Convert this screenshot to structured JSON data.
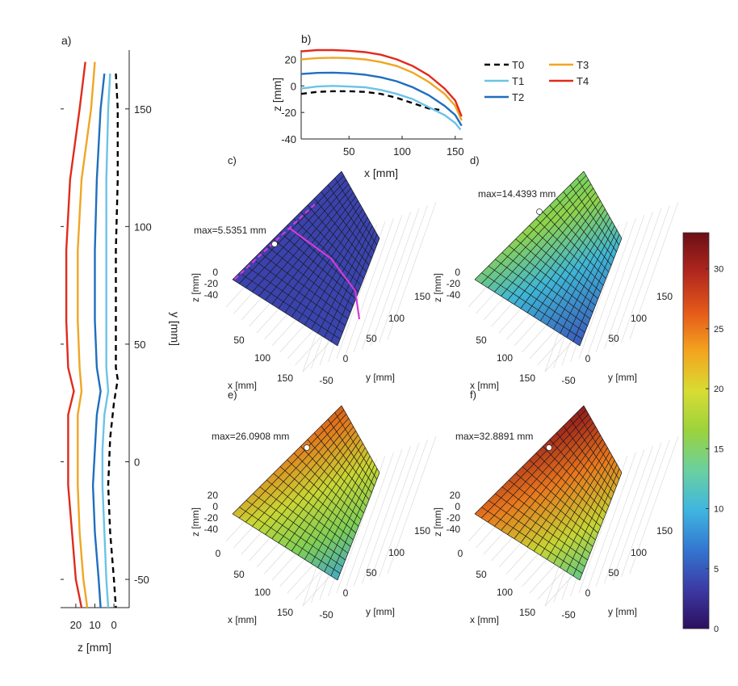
{
  "chart_data": [
    {
      "id": "a",
      "panel_label": "a)",
      "type": "line",
      "title": "",
      "xlabel": "z [mm]",
      "ylabel": "y [mm]",
      "xlim": [
        28,
        -8
      ],
      "ylim": [
        -62,
        175
      ],
      "x_ticks": [
        20,
        10,
        0
      ],
      "x_tick_labels": [
        "20",
        "10",
        "0"
      ],
      "y_ticks": [
        -50,
        0,
        50,
        100,
        150
      ],
      "y_tick_labels": [
        "-50",
        "0",
        "50",
        "100",
        "150"
      ],
      "series": [
        {
          "name": "T0",
          "color": "#000000",
          "dash": true,
          "points": [
            [
              -1,
              165
            ],
            [
              -2,
              150
            ],
            [
              -2,
              120
            ],
            [
              -1,
              90
            ],
            [
              -1,
              60
            ],
            [
              -1,
              40
            ],
            [
              -2,
              35
            ],
            [
              0,
              25
            ],
            [
              2,
              10
            ],
            [
              3,
              -10
            ],
            [
              2,
              -30
            ],
            [
              0,
              -50
            ],
            [
              -1,
              -62
            ]
          ]
        },
        {
          "name": "T1",
          "color": "#6cc3e8",
          "dash": false,
          "points": [
            [
              2,
              165
            ],
            [
              3,
              150
            ],
            [
              4,
              120
            ],
            [
              4,
              90
            ],
            [
              4,
              60
            ],
            [
              4,
              40
            ],
            [
              3,
              30
            ],
            [
              5,
              20
            ],
            [
              6,
              5
            ],
            [
              6,
              -10
            ],
            [
              5,
              -30
            ],
            [
              4,
              -50
            ],
            [
              3,
              -62
            ]
          ]
        },
        {
          "name": "T2",
          "color": "#1f6fbf",
          "dash": false,
          "points": [
            [
              5,
              165
            ],
            [
              7,
              150
            ],
            [
              9,
              120
            ],
            [
              10,
              90
            ],
            [
              10,
              60
            ],
            [
              9,
              40
            ],
            [
              7,
              30
            ],
            [
              9,
              20
            ],
            [
              10,
              5
            ],
            [
              11,
              -10
            ],
            [
              10,
              -30
            ],
            [
              8,
              -50
            ],
            [
              7,
              -62
            ]
          ]
        },
        {
          "name": "T3",
          "color": "#f0a623",
          "dash": false,
          "points": [
            [
              10,
              170
            ],
            [
              12,
              150
            ],
            [
              17,
              120
            ],
            [
              19,
              90
            ],
            [
              19,
              60
            ],
            [
              18,
              40
            ],
            [
              17,
              30
            ],
            [
              19,
              20
            ],
            [
              19,
              5
            ],
            [
              19,
              -10
            ],
            [
              18,
              -30
            ],
            [
              16,
              -50
            ],
            [
              14,
              -62
            ]
          ]
        },
        {
          "name": "T4",
          "color": "#e02b1b",
          "dash": false,
          "points": [
            [
              15,
              170
            ],
            [
              18,
              150
            ],
            [
              23,
              120
            ],
            [
              25,
              90
            ],
            [
              25,
              60
            ],
            [
              24,
              40
            ],
            [
              21,
              30
            ],
            [
              24,
              20
            ],
            [
              24,
              5
            ],
            [
              24,
              -10
            ],
            [
              22,
              -30
            ],
            [
              20,
              -50
            ],
            [
              17,
              -62
            ]
          ]
        }
      ]
    },
    {
      "id": "b",
      "panel_label": "b)",
      "type": "line",
      "title": "",
      "xlabel": "x [mm]",
      "ylabel": "z [mm]",
      "xlim": [
        5,
        157
      ],
      "ylim": [
        -40,
        27
      ],
      "x_ticks": [
        50,
        100,
        150
      ],
      "x_tick_labels": [
        "50",
        "100",
        "150"
      ],
      "y_ticks": [
        20,
        0,
        -20,
        -40
      ],
      "y_tick_labels": [
        "20",
        "0",
        "-20",
        "-40"
      ],
      "legend": {
        "position": "outside-right",
        "entries": [
          "T0",
          "T3",
          "T1",
          "T4",
          "T2"
        ]
      },
      "series": [
        {
          "name": "T0",
          "color": "#000000",
          "dash": true,
          "points": [
            [
              5,
              -6
            ],
            [
              20,
              -4.5
            ],
            [
              35,
              -4
            ],
            [
              50,
              -4
            ],
            [
              65,
              -4.5
            ],
            [
              80,
              -6
            ],
            [
              95,
              -9
            ],
            [
              110,
              -13
            ],
            [
              125,
              -17
            ],
            [
              135,
              -18
            ]
          ]
        },
        {
          "name": "T1",
          "color": "#6cc3e8",
          "dash": false,
          "points": [
            [
              5,
              -2
            ],
            [
              20,
              -0.5
            ],
            [
              35,
              0
            ],
            [
              50,
              -0.5
            ],
            [
              65,
              -1
            ],
            [
              80,
              -3
            ],
            [
              95,
              -6
            ],
            [
              110,
              -10
            ],
            [
              125,
              -16
            ],
            [
              140,
              -22
            ],
            [
              150,
              -28
            ],
            [
              155,
              -33
            ]
          ]
        },
        {
          "name": "T2",
          "color": "#1f6fbf",
          "dash": false,
          "points": [
            [
              5,
              9
            ],
            [
              20,
              9.8
            ],
            [
              35,
              10
            ],
            [
              50,
              9.5
            ],
            [
              65,
              8.5
            ],
            [
              80,
              6.5
            ],
            [
              95,
              3.5
            ],
            [
              110,
              -1
            ],
            [
              125,
              -7
            ],
            [
              140,
              -15
            ],
            [
              150,
              -22
            ],
            [
              156,
              -30
            ]
          ]
        },
        {
          "name": "T3",
          "color": "#f0a623",
          "dash": false,
          "points": [
            [
              5,
              20
            ],
            [
              20,
              21
            ],
            [
              35,
              21.3
            ],
            [
              50,
              21
            ],
            [
              65,
              20
            ],
            [
              80,
              18
            ],
            [
              95,
              15
            ],
            [
              110,
              10
            ],
            [
              125,
              3
            ],
            [
              140,
              -6
            ],
            [
              150,
              -15
            ],
            [
              156,
              -26
            ]
          ]
        },
        {
          "name": "T4",
          "color": "#e02b1b",
          "dash": false,
          "points": [
            [
              5,
              26
            ],
            [
              20,
              27
            ],
            [
              35,
              27
            ],
            [
              50,
              26.5
            ],
            [
              65,
              25.5
            ],
            [
              80,
              23.5
            ],
            [
              95,
              20
            ],
            [
              110,
              15
            ],
            [
              125,
              8
            ],
            [
              140,
              -2
            ],
            [
              150,
              -11
            ],
            [
              156,
              -23
            ]
          ]
        }
      ]
    },
    {
      "id": "c",
      "panel_label": "c)",
      "type": "surface",
      "max_label": "max=5.5351 mm",
      "max_value": 5.5351,
      "xlabel": "x [mm]",
      "ylabel": "y [mm]",
      "zlabel": "z [mm]",
      "x_tick_labels": [
        "50",
        "100",
        "150"
      ],
      "y_tick_labels": [
        "-50",
        "0",
        "50",
        "100",
        "150"
      ],
      "z_tick_labels": [
        "0",
        "-20",
        "-40"
      ],
      "show_section_lines": true
    },
    {
      "id": "d",
      "panel_label": "d)",
      "type": "surface",
      "max_label": "max=14.4393 mm",
      "max_value": 14.4393,
      "xlabel": "x [mm]",
      "ylabel": "y [mm]",
      "zlabel": "z [mm]",
      "x_tick_labels": [
        "50",
        "100",
        "150"
      ],
      "y_tick_labels": [
        "-50",
        "0",
        "50",
        "100",
        "150"
      ],
      "z_tick_labels": [
        "0",
        "-20",
        "-40"
      ],
      "show_section_lines": false
    },
    {
      "id": "e",
      "panel_label": "e)",
      "type": "surface",
      "max_label": "max=26.0908 mm",
      "max_value": 26.0908,
      "xlabel": "x [mm]",
      "ylabel": "y [mm]",
      "zlabel": "z [mm]",
      "x_tick_labels": [
        "0",
        "50",
        "100",
        "150"
      ],
      "y_tick_labels": [
        "-50",
        "0",
        "50",
        "100",
        "150"
      ],
      "z_tick_labels": [
        "20",
        "0",
        "-20",
        "-40"
      ],
      "show_section_lines": false
    },
    {
      "id": "f",
      "panel_label": "f)",
      "type": "surface",
      "max_label": "max=32.8891 mm",
      "max_value": 32.8891,
      "xlabel": "x [mm]",
      "ylabel": "y [mm]",
      "zlabel": "z [mm]",
      "x_tick_labels": [
        "0",
        "50",
        "100",
        "150"
      ],
      "y_tick_labels": [
        "-50",
        "0",
        "50",
        "100",
        "150"
      ],
      "z_tick_labels": [
        "20",
        "0",
        "-20",
        "-40"
      ],
      "show_section_lines": false
    },
    {
      "id": "colorbar",
      "type": "heatmap",
      "range": [
        0,
        33
      ],
      "ticks": [
        0,
        5,
        10,
        15,
        20,
        25,
        30
      ],
      "tick_labels": [
        "0",
        "5",
        "10",
        "15",
        "20",
        "25",
        "30"
      ],
      "colormap": [
        "#2c0f5e",
        "#3c3aa5",
        "#3377d0",
        "#3fb6e0",
        "#6bd0a0",
        "#9ad33c",
        "#d8dc33",
        "#f3a51e",
        "#e5591a",
        "#b0271e",
        "#6b0f16"
      ]
    }
  ]
}
